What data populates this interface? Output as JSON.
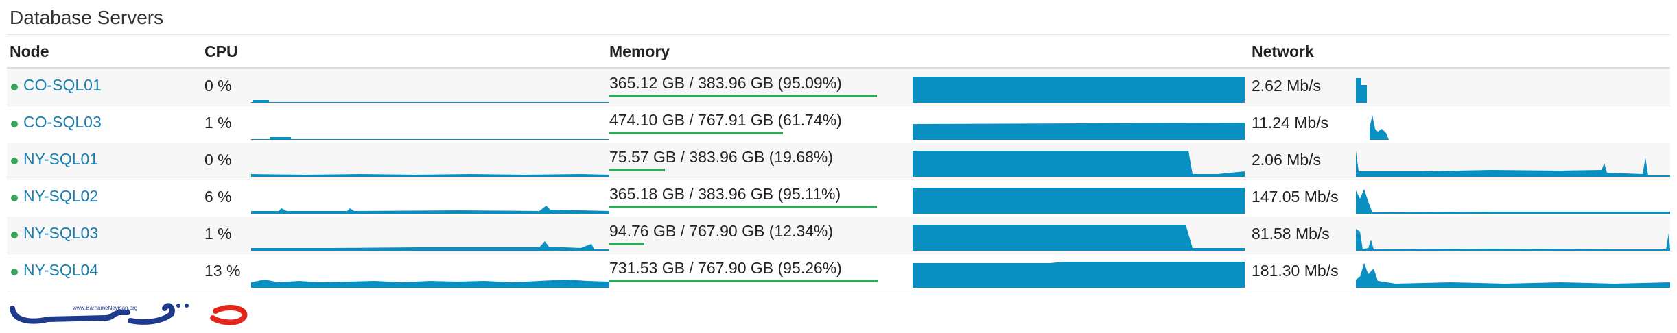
{
  "panel": {
    "title": "Database Servers"
  },
  "columns": {
    "node": "Node",
    "cpu": "CPU",
    "memory": "Memory",
    "network": "Network"
  },
  "colors": {
    "accent": "#0a8fc2",
    "status_ok": "#3aa55d",
    "link": "#1a7fb0"
  },
  "rows": [
    {
      "name": "CO-SQL01",
      "cpu": "0 %",
      "cpu_percent": 0,
      "memory": "365.12 GB / 383.96 GB (95.09%)",
      "memory_percent": 95.09,
      "network": "2.62 Mb/s"
    },
    {
      "name": "CO-SQL03",
      "cpu": "1 %",
      "cpu_percent": 1,
      "memory": "474.10 GB / 767.91 GB (61.74%)",
      "memory_percent": 61.74,
      "network": "11.24 Mb/s"
    },
    {
      "name": "NY-SQL01",
      "cpu": "0 %",
      "cpu_percent": 0,
      "memory": "75.57 GB / 383.96 GB (19.68%)",
      "memory_percent": 19.68,
      "network": "2.06 Mb/s"
    },
    {
      "name": "NY-SQL02",
      "cpu": "6 %",
      "cpu_percent": 6,
      "memory": "365.18 GB / 383.96 GB (95.11%)",
      "memory_percent": 95.11,
      "network": "147.05 Mb/s"
    },
    {
      "name": "NY-SQL03",
      "cpu": "1 %",
      "cpu_percent": 1,
      "memory": "94.76 GB / 767.90 GB (12.34%)",
      "memory_percent": 12.34,
      "network": "81.58 Mb/s"
    },
    {
      "name": "NY-SQL04",
      "cpu": "13 %",
      "cpu_percent": 13,
      "memory": "731.53 GB / 767.90 GB (95.26%)",
      "memory_percent": 95.26,
      "network": "181.30 Mb/s"
    }
  ],
  "watermark": {
    "caption": "www.BarnameNevisan.org"
  }
}
